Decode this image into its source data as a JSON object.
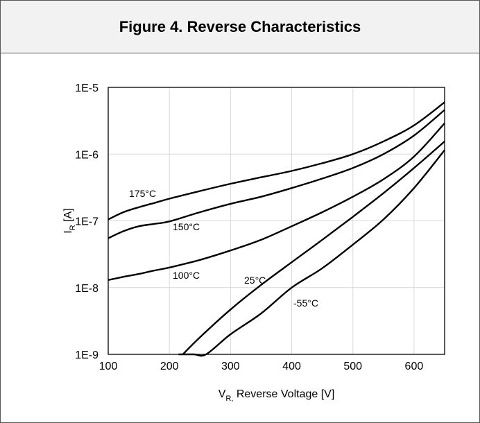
{
  "header": {
    "title": "Figure 4. Reverse Characteristics"
  },
  "chart_data": {
    "type": "line",
    "title": "Figure 4. Reverse Characteristics",
    "xlabel": {
      "main": "V",
      "sub": "R,",
      "rest": " Reverse Voltage [V]"
    },
    "ylabel": {
      "main": "I",
      "sub": "R",
      "rest": " [A]"
    },
    "xlim": [
      100,
      650
    ],
    "ylim": [
      1e-09,
      1e-05
    ],
    "yscale": "log",
    "grid": {
      "x": true,
      "y": true
    },
    "x_ticks": [
      100,
      200,
      300,
      400,
      500,
      600
    ],
    "x_tick_labels": [
      "100",
      "200",
      "300",
      "400",
      "500",
      "600"
    ],
    "y_ticks": [
      1e-09,
      1e-08,
      1e-07,
      1e-06,
      1e-05
    ],
    "y_tick_labels": [
      "1E-9",
      "1E-8",
      "1E-7",
      "1E-6",
      "1E-5"
    ],
    "series": [
      {
        "name": "175°C",
        "x": [
          100,
          125,
          150,
          175,
          200,
          250,
          300,
          350,
          400,
          450,
          500,
          550,
          600,
          650
        ],
        "y": [
          1.05e-07,
          1.35e-07,
          1.6e-07,
          1.85e-07,
          2.15e-07,
          2.8e-07,
          3.6e-07,
          4.5e-07,
          5.6e-07,
          7.3e-07,
          1e-06,
          1.55e-06,
          2.7e-06,
          6e-06
        ]
      },
      {
        "name": "150°C",
        "x": [
          100,
          125,
          150,
          175,
          200,
          250,
          300,
          350,
          400,
          450,
          500,
          550,
          600,
          650
        ],
        "y": [
          5.5e-08,
          7e-08,
          8.3e-08,
          9e-08,
          9.8e-08,
          1.35e-07,
          1.8e-07,
          2.3e-07,
          3.1e-07,
          4.3e-07,
          6.2e-07,
          1e-06,
          1.9e-06,
          4.6e-06
        ]
      },
      {
        "name": "100°C",
        "x": [
          100,
          125,
          150,
          175,
          200,
          250,
          300,
          350,
          400,
          450,
          500,
          550,
          600,
          650
        ],
        "y": [
          1.3e-08,
          1.45e-08,
          1.6e-08,
          1.8e-08,
          2e-08,
          2.6e-08,
          3.6e-08,
          5.2e-08,
          8.3e-08,
          1.35e-07,
          2.3e-07,
          4.2e-07,
          9.2e-07,
          2.9e-06
        ]
      },
      {
        "name": "25°C",
        "x": [
          222,
          250,
          300,
          350,
          400,
          450,
          500,
          550,
          600,
          650
        ],
        "y": [
          1e-09,
          1.8e-09,
          4.7e-09,
          1.1e-08,
          2.4e-08,
          5.2e-08,
          1.15e-07,
          2.6e-07,
          6.2e-07,
          1.55e-06
        ]
      },
      {
        "name": "-55°C",
        "x": [
          215,
          240,
          260,
          300,
          350,
          400,
          450,
          500,
          550,
          600,
          650
        ],
        "y": [
          1e-09,
          1e-09,
          1e-09,
          2e-09,
          4.1e-09,
          1e-08,
          1.95e-08,
          4.4e-08,
          1.05e-07,
          3.1e-07,
          1.15e-06
        ]
      }
    ],
    "annotations": [
      "175°C",
      "150°C",
      "100°C",
      "25°C",
      "-55°C"
    ]
  }
}
